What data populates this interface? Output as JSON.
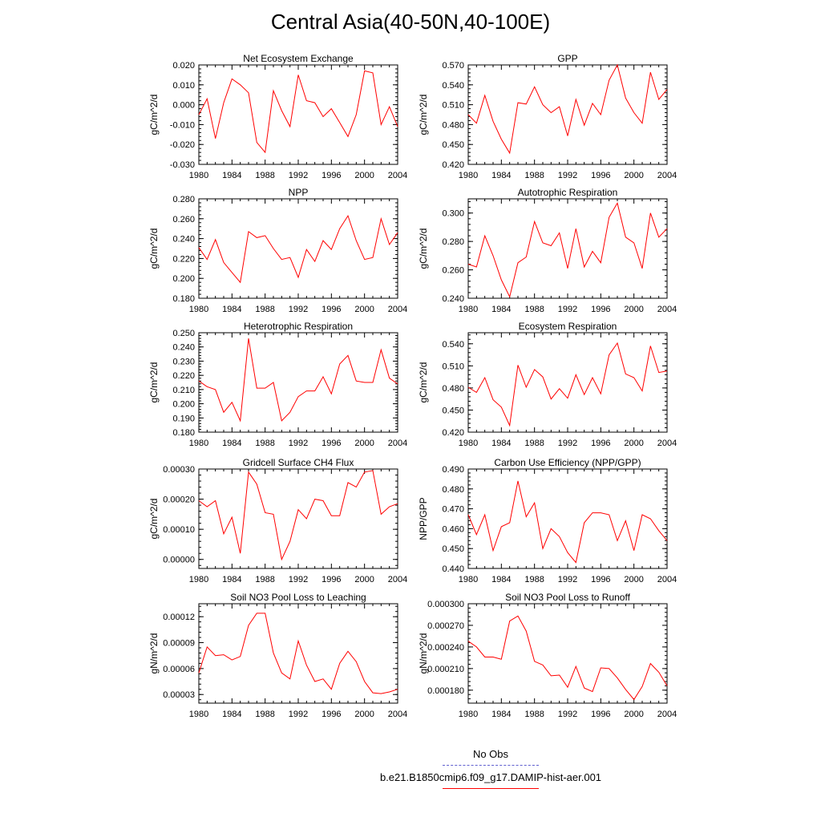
{
  "title": "Central Asia(40-50N,40-100E)",
  "colors": {
    "series": "#ff0000",
    "no_obs": "#6060d0",
    "axis": "#000000"
  },
  "x_ticks": [
    1980,
    1984,
    1988,
    1992,
    1996,
    2000,
    2004
  ],
  "legend": {
    "no_obs_label": "No Obs",
    "model_label": "b.e21.B1850cmip6.f09_g17.DAMIP-hist-aer.001"
  },
  "chart_data": [
    {
      "type": "line",
      "title": "Net Ecosystem Exchange",
      "ylabel": "gC/m^2/d",
      "xlim": [
        1980,
        2004
      ],
      "ylim": [
        -0.03,
        0.02
      ],
      "yticks": [
        -0.03,
        -0.02,
        -0.01,
        0.0,
        0.01,
        0.02
      ],
      "yticklabels": [
        "-0.030",
        "-0.020",
        "-0.010",
        "0.000",
        "0.010",
        "0.020"
      ],
      "x": [
        1980,
        1981,
        1982,
        1983,
        1984,
        1985,
        1986,
        1987,
        1988,
        1989,
        1990,
        1991,
        1992,
        1993,
        1994,
        1995,
        1996,
        1997,
        1998,
        1999,
        2000,
        2001,
        2002,
        2003,
        2004
      ],
      "values": [
        -0.005,
        0.003,
        -0.017,
        0.001,
        0.013,
        0.01,
        0.006,
        -0.019,
        -0.024,
        0.007,
        -0.003,
        -0.011,
        0.015,
        0.002,
        0.001,
        -0.006,
        -0.002,
        -0.009,
        -0.016,
        -0.005,
        0.017,
        0.016,
        -0.01,
        -0.001,
        -0.011
      ]
    },
    {
      "type": "line",
      "title": "GPP",
      "ylabel": "gC/m^2/d",
      "xlim": [
        1980,
        2004
      ],
      "ylim": [
        0.42,
        0.57
      ],
      "yticks": [
        0.42,
        0.45,
        0.48,
        0.51,
        0.54,
        0.57
      ],
      "yticklabels": [
        "0.420",
        "0.450",
        "0.480",
        "0.510",
        "0.540",
        "0.570"
      ],
      "x": [
        1980,
        1981,
        1982,
        1983,
        1984,
        1985,
        1986,
        1987,
        1988,
        1989,
        1990,
        1991,
        1992,
        1993,
        1994,
        1995,
        1996,
        1997,
        1998,
        1999,
        2000,
        2001,
        2002,
        2003,
        2004
      ],
      "values": [
        0.495,
        0.482,
        0.524,
        0.485,
        0.458,
        0.437,
        0.513,
        0.511,
        0.537,
        0.51,
        0.498,
        0.507,
        0.463,
        0.518,
        0.479,
        0.512,
        0.495,
        0.547,
        0.57,
        0.52,
        0.498,
        0.482,
        0.559,
        0.518,
        0.533
      ]
    },
    {
      "type": "line",
      "title": "NPP",
      "ylabel": "gC/m^2/d",
      "xlim": [
        1980,
        2004
      ],
      "ylim": [
        0.18,
        0.28
      ],
      "yticks": [
        0.18,
        0.2,
        0.22,
        0.24,
        0.26,
        0.28
      ],
      "yticklabels": [
        "0.180",
        "0.200",
        "0.220",
        "0.240",
        "0.260",
        "0.280"
      ],
      "x": [
        1980,
        1981,
        1982,
        1983,
        1984,
        1985,
        1986,
        1987,
        1988,
        1989,
        1990,
        1991,
        1992,
        1993,
        1994,
        1995,
        1996,
        1997,
        1998,
        1999,
        2000,
        2001,
        2002,
        2003,
        2004
      ],
      "values": [
        0.231,
        0.219,
        0.239,
        0.216,
        0.206,
        0.196,
        0.247,
        0.241,
        0.243,
        0.23,
        0.219,
        0.221,
        0.201,
        0.229,
        0.217,
        0.238,
        0.229,
        0.25,
        0.263,
        0.238,
        0.219,
        0.221,
        0.26,
        0.234,
        0.246
      ]
    },
    {
      "type": "line",
      "title": "Autotrophic Respiration",
      "ylabel": "gC/m^2/d",
      "xlim": [
        1980,
        2004
      ],
      "ylim": [
        0.24,
        0.31
      ],
      "yticks": [
        0.24,
        0.26,
        0.28,
        0.3
      ],
      "yticklabels": [
        "0.240",
        "0.260",
        "0.280",
        "0.300"
      ],
      "x": [
        1980,
        1981,
        1982,
        1983,
        1984,
        1985,
        1986,
        1987,
        1988,
        1989,
        1990,
        1991,
        1992,
        1993,
        1994,
        1995,
        1996,
        1997,
        1998,
        1999,
        2000,
        2001,
        2002,
        2003,
        2004
      ],
      "values": [
        0.264,
        0.262,
        0.284,
        0.27,
        0.253,
        0.241,
        0.265,
        0.269,
        0.294,
        0.279,
        0.277,
        0.286,
        0.261,
        0.289,
        0.262,
        0.273,
        0.265,
        0.297,
        0.307,
        0.283,
        0.279,
        0.261,
        0.3,
        0.283,
        0.289
      ]
    },
    {
      "type": "line",
      "title": "Heterotrophic Respiration",
      "ylabel": "gC/m^2/d",
      "xlim": [
        1980,
        2004
      ],
      "ylim": [
        0.18,
        0.25
      ],
      "yticks": [
        0.18,
        0.19,
        0.2,
        0.21,
        0.22,
        0.23,
        0.24,
        0.25
      ],
      "yticklabels": [
        "0.180",
        "0.190",
        "0.200",
        "0.210",
        "0.220",
        "0.230",
        "0.240",
        "0.250"
      ],
      "x": [
        1980,
        1981,
        1982,
        1983,
        1984,
        1985,
        1986,
        1987,
        1988,
        1989,
        1990,
        1991,
        1992,
        1993,
        1994,
        1995,
        1996,
        1997,
        1998,
        1999,
        2000,
        2001,
        2002,
        2003,
        2004
      ],
      "values": [
        0.216,
        0.212,
        0.21,
        0.194,
        0.201,
        0.188,
        0.246,
        0.211,
        0.211,
        0.215,
        0.188,
        0.194,
        0.205,
        0.209,
        0.209,
        0.219,
        0.207,
        0.228,
        0.234,
        0.216,
        0.215,
        0.215,
        0.238,
        0.218,
        0.214
      ]
    },
    {
      "type": "line",
      "title": "Ecosystem Respiration",
      "ylabel": "gC/m^2/d",
      "xlim": [
        1980,
        2004
      ],
      "ylim": [
        0.42,
        0.555
      ],
      "yticks": [
        0.42,
        0.45,
        0.48,
        0.51,
        0.54
      ],
      "yticklabels": [
        "0.420",
        "0.450",
        "0.480",
        "0.510",
        "0.540"
      ],
      "x": [
        1980,
        1981,
        1982,
        1983,
        1984,
        1985,
        1986,
        1987,
        1988,
        1989,
        1990,
        1991,
        1992,
        1993,
        1994,
        1995,
        1996,
        1997,
        1998,
        1999,
        2000,
        2001,
        2002,
        2003,
        2004
      ],
      "values": [
        0.481,
        0.474,
        0.494,
        0.464,
        0.454,
        0.429,
        0.511,
        0.481,
        0.505,
        0.495,
        0.465,
        0.479,
        0.466,
        0.498,
        0.471,
        0.494,
        0.472,
        0.525,
        0.541,
        0.499,
        0.494,
        0.476,
        0.537,
        0.501,
        0.503
      ]
    },
    {
      "type": "line",
      "title": "Gridcell Surface CH4 Flux",
      "ylabel": "gC/m^2/d",
      "xlim": [
        1980,
        2004
      ],
      "ylim": [
        -3e-05,
        0.0003
      ],
      "yticks": [
        0.0,
        0.0001,
        0.0002,
        0.0003
      ],
      "yticklabels": [
        "0.00000",
        "0.00010",
        "0.00020",
        "0.00030"
      ],
      "x": [
        1980,
        1981,
        1982,
        1983,
        1984,
        1985,
        1986,
        1987,
        1988,
        1989,
        1990,
        1991,
        1992,
        1993,
        1994,
        1995,
        1996,
        1997,
        1998,
        1999,
        2000,
        2001,
        2002,
        2003,
        2004
      ],
      "values": [
        0.000195,
        0.000175,
        0.000195,
        8.5e-05,
        0.00014,
        2e-05,
        0.00029,
        0.00025,
        0.000155,
        0.00015,
        0.0,
        6e-05,
        0.000165,
        0.000135,
        0.0002,
        0.000195,
        0.000145,
        0.000145,
        0.000255,
        0.00024,
        0.00029,
        0.000295,
        0.00015,
        0.000175,
        0.000185
      ]
    },
    {
      "type": "line",
      "title": "Carbon Use Efficiency (NPP/GPP)",
      "ylabel": "NPP/GPP",
      "xlim": [
        1980,
        2004
      ],
      "ylim": [
        0.44,
        0.49
      ],
      "yticks": [
        0.44,
        0.45,
        0.46,
        0.47,
        0.48,
        0.49
      ],
      "yticklabels": [
        "0.440",
        "0.450",
        "0.460",
        "0.470",
        "0.480",
        "0.490"
      ],
      "x": [
        1980,
        1981,
        1982,
        1983,
        1984,
        1985,
        1986,
        1987,
        1988,
        1989,
        1990,
        1991,
        1992,
        1993,
        1994,
        1995,
        1996,
        1997,
        1998,
        1999,
        2000,
        2001,
        2002,
        2003,
        2004
      ],
      "values": [
        0.467,
        0.457,
        0.467,
        0.449,
        0.461,
        0.463,
        0.484,
        0.466,
        0.473,
        0.45,
        0.46,
        0.456,
        0.448,
        0.443,
        0.463,
        0.468,
        0.468,
        0.467,
        0.454,
        0.464,
        0.449,
        0.467,
        0.465,
        0.459,
        0.454
      ]
    },
    {
      "type": "line",
      "title": "Soil NO3 Pool Loss to Leaching",
      "ylabel": "gN/m^2/d",
      "xlim": [
        1980,
        2004
      ],
      "ylim": [
        2e-05,
        0.000135
      ],
      "yticks": [
        3e-05,
        6e-05,
        9e-05,
        0.00012
      ],
      "yticklabels": [
        "0.00003",
        "0.00006",
        "0.00009",
        "0.00012"
      ],
      "x": [
        1980,
        1981,
        1982,
        1983,
        1984,
        1985,
        1986,
        1987,
        1988,
        1989,
        1990,
        1991,
        1992,
        1993,
        1994,
        1995,
        1996,
        1997,
        1998,
        1999,
        2000,
        2001,
        2002,
        2003,
        2004
      ],
      "values": [
        5.5e-05,
        8.5e-05,
        7.5e-05,
        7.6e-05,
        7e-05,
        7.4e-05,
        0.00011,
        0.000124,
        0.000124,
        7.8e-05,
        5.5e-05,
        4.8e-05,
        9.2e-05,
        6.4e-05,
        4.5e-05,
        4.8e-05,
        3.6e-05,
        6.6e-05,
        8e-05,
        6.8e-05,
        4.5e-05,
        3.2e-05,
        3.1e-05,
        3.3e-05,
        3.6e-05
      ]
    },
    {
      "type": "line",
      "title": "Soil NO3 Pool Loss to Runoff",
      "ylabel": "gN/m^2/d",
      "xlim": [
        1980,
        2004
      ],
      "ylim": [
        0.000162,
        0.0003
      ],
      "yticks": [
        0.00018,
        0.00021,
        0.00024,
        0.00027,
        0.0003
      ],
      "yticklabels": [
        "0.000180",
        "0.000210",
        "0.000240",
        "0.000270",
        "0.000300"
      ],
      "x": [
        1980,
        1981,
        1982,
        1983,
        1984,
        1985,
        1986,
        1987,
        1988,
        1989,
        1990,
        1991,
        1992,
        1993,
        1994,
        1995,
        1996,
        1997,
        1998,
        1999,
        2000,
        2001,
        2002,
        2003,
        2004
      ],
      "values": [
        0.000248,
        0.00024,
        0.000226,
        0.000226,
        0.000223,
        0.000276,
        0.000283,
        0.000262,
        0.00022,
        0.000215,
        0.0002,
        0.000201,
        0.000184,
        0.000213,
        0.000183,
        0.000178,
        0.000211,
        0.00021,
        0.000197,
        0.000181,
        0.000167,
        0.000185,
        0.000217,
        0.000205,
        0.000186
      ]
    }
  ]
}
